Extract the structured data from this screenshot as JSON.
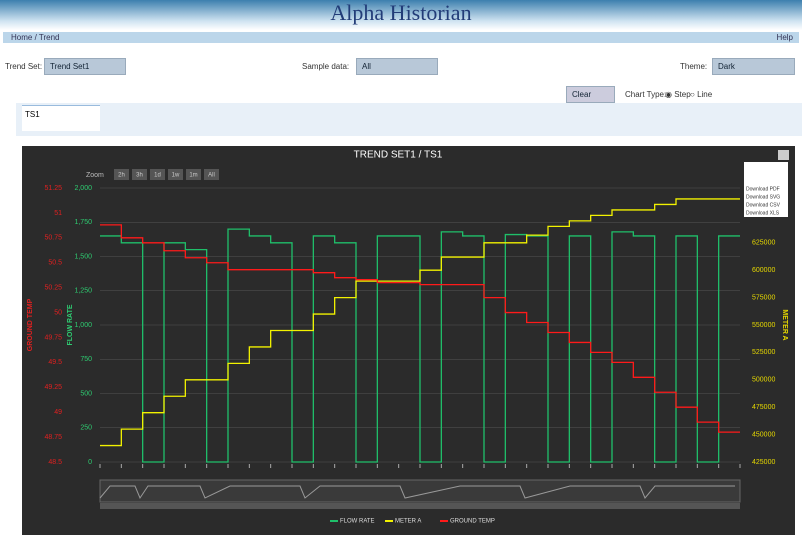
{
  "header": {
    "title": "Alpha Historian"
  },
  "nav": {
    "home": "Home",
    "current": "Trend",
    "help": "Help"
  },
  "controls": {
    "trend_set_label": "Trend Set:",
    "trend_set": "Trend Set1",
    "sample_data_label": "Sample data:",
    "sample_data": "All",
    "theme_label": "Theme:",
    "theme": "Dark",
    "clear_notes": "Clear Notes",
    "chart_type_label": "Chart Type:",
    "chart_types": [
      "Step",
      "Line"
    ]
  },
  "tabs": [
    "TS1"
  ],
  "chart": {
    "type": "step",
    "title": "TREND SET1 / TS1",
    "zoom_label": "Zoom",
    "zoom_buttons": [
      "2h",
      "3h",
      "1d",
      "1w",
      "1m",
      "All"
    ],
    "menu": [
      "Download PDF",
      "Download SVG",
      "Download CSV",
      "Download XLS"
    ],
    "categories": [
      null,
      null,
      null,
      null,
      null,
      null,
      null,
      null,
      null,
      null,
      null,
      null,
      null,
      null,
      null,
      null,
      null,
      null,
      null,
      null,
      null,
      null,
      null,
      null,
      null,
      null,
      null,
      null,
      null,
      null
    ],
    "axes": [
      {
        "id": "ground",
        "title": "GROUND TEMP",
        "color": "#e02020",
        "lim": [
          48.5,
          51.25
        ],
        "ticks": [
          48.5,
          48.75,
          49,
          49.25,
          49.5,
          49.75,
          50,
          50.25,
          50.5,
          50.75,
          51,
          51.25
        ]
      },
      {
        "id": "flow",
        "title": "FLOW RATE",
        "color": "#2ecc71",
        "lim": [
          0,
          2000
        ],
        "ticks": [
          0,
          250,
          500,
          750,
          {
            "value": 1000,
            "label": "1,000"
          },
          {
            "value": 1250,
            "label": "1,250"
          },
          {
            "value": 1500,
            "label": "1,500"
          },
          {
            "value": 1750,
            "label": "1,750"
          },
          {
            "value": 2000,
            "label": "2,000"
          }
        ]
      },
      {
        "id": "meter",
        "title": "METER A",
        "color": "#e6d800",
        "lim": [
          425000,
          675000
        ],
        "ticks": [
          425000,
          450000,
          475000,
          500000,
          525000,
          550000,
          575000,
          600000,
          625000
        ]
      }
    ],
    "series": [
      {
        "name": "FLOW RATE",
        "axis": "flow",
        "color": "#1fbf6a",
        "values": [
          1650,
          1600,
          0,
          1600,
          1550,
          0,
          1700,
          1650,
          1600,
          0,
          1650,
          1600,
          0,
          1650,
          1650,
          0,
          1680,
          1650,
          0,
          1660,
          1650,
          0,
          1650,
          0,
          1680,
          1650,
          0,
          1650,
          0,
          1650
        ]
      },
      {
        "name": "METER A",
        "axis": "meter",
        "color": "#f2f200",
        "values": [
          440000,
          455000,
          470000,
          485000,
          500000,
          500000,
          515000,
          530000,
          545000,
          545000,
          560000,
          575000,
          590000,
          590000,
          590000,
          600000,
          612000,
          612000,
          625000,
          625000,
          632000,
          640000,
          645000,
          650000,
          655000,
          655000,
          660000,
          665000,
          665000,
          665000
        ]
      },
      {
        "name": "GROUND TEMP",
        "axis": "ground",
        "color": "#ff1a1a",
        "values": [
          50.88,
          50.75,
          50.7,
          50.62,
          50.55,
          50.5,
          50.43,
          50.43,
          50.43,
          50.43,
          50.4,
          50.35,
          50.33,
          50.3,
          50.3,
          50.28,
          50.28,
          50.28,
          50.15,
          50.0,
          49.9,
          49.8,
          49.7,
          49.6,
          49.5,
          49.35,
          49.2,
          49.05,
          48.9,
          48.8
        ]
      }
    ]
  }
}
